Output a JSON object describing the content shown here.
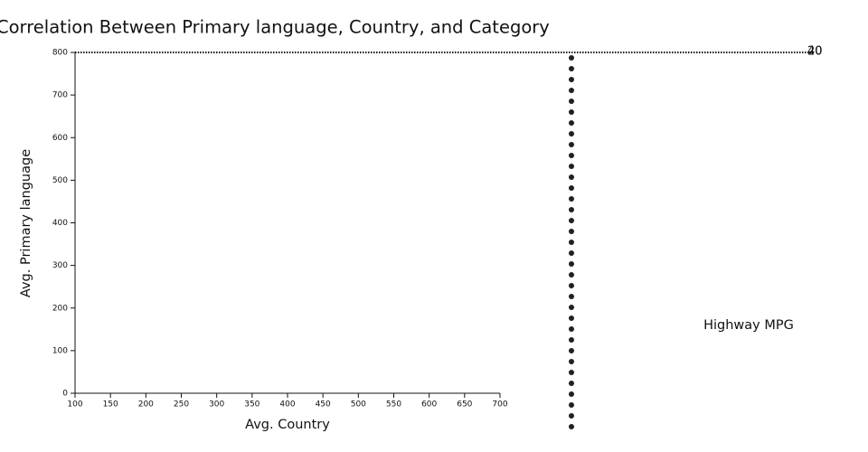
{
  "chart_data": {
    "type": "scatter",
    "title": "Correlation Between Primary language, Country, and Category",
    "x_label": "Avg. Country",
    "y_label": "Avg. Primary language",
    "xlim": [
      100,
      700
    ],
    "xticks": [
      100,
      150,
      200,
      250,
      300,
      350,
      400,
      450,
      500,
      550,
      600,
      650,
      700
    ],
    "ylim": [
      0,
      800
    ],
    "yticks": [
      0,
      100,
      200,
      300,
      400,
      500,
      600,
      700,
      800
    ],
    "size_legend": {
      "title": "Highway MPG",
      "values": [
        20,
        40
      ]
    }
  }
}
